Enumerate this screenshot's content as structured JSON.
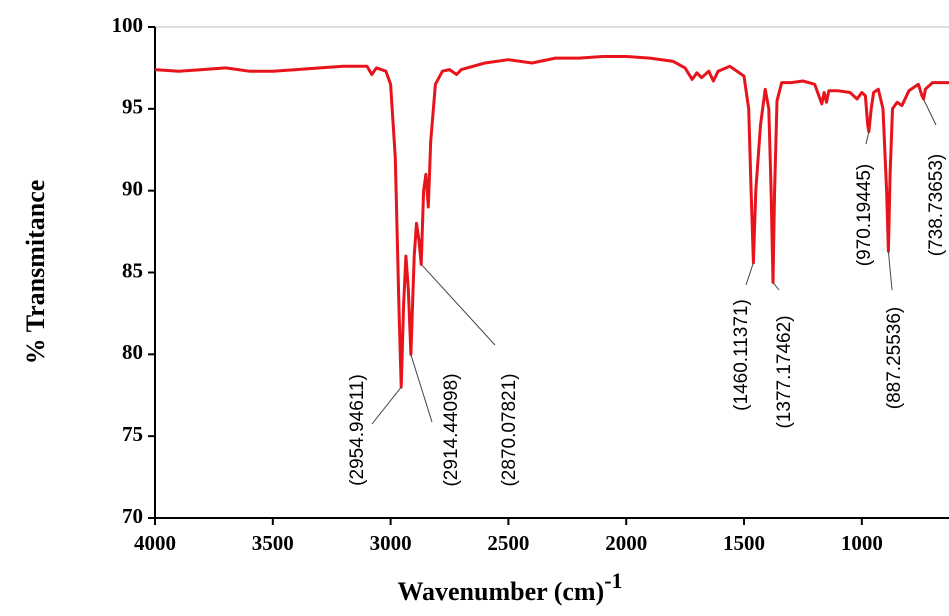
{
  "chart_data": {
    "type": "line",
    "y_label": "% Transmitance",
    "x_label": {
      "text": "Wavenumber (cm)",
      "superscript": "-1"
    },
    "xlim": [
      4000,
      630
    ],
    "ylim": [
      70,
      100
    ],
    "xticks": [
      4000,
      3500,
      3000,
      2500,
      2000,
      1500,
      1000
    ],
    "yticks": [
      70,
      75,
      80,
      85,
      90,
      95,
      100
    ],
    "series": [
      {
        "color": "#e8141b",
        "x": [
          4000,
          3900,
          3800,
          3700,
          3600,
          3500,
          3400,
          3300,
          3200,
          3100,
          3080,
          3060,
          3020,
          3000,
          2980,
          2965,
          2955,
          2945,
          2935,
          2925,
          2914,
          2900,
          2890,
          2880,
          2870,
          2860,
          2850,
          2840,
          2830,
          2810,
          2780,
          2750,
          2720,
          2700,
          2600,
          2500,
          2400,
          2300,
          2200,
          2100,
          2000,
          1900,
          1800,
          1750,
          1720,
          1700,
          1680,
          1650,
          1630,
          1610,
          1560,
          1500,
          1480,
          1470,
          1460,
          1450,
          1430,
          1410,
          1395,
          1385,
          1377,
          1370,
          1360,
          1340,
          1300,
          1250,
          1200,
          1170,
          1160,
          1150,
          1140,
          1100,
          1050,
          1020,
          1000,
          985,
          975,
          970,
          960,
          950,
          930,
          910,
          895,
          887,
          880,
          870,
          850,
          830,
          800,
          760,
          745,
          738,
          730,
          700,
          650,
          630
        ],
        "values": [
          97.4,
          97.3,
          97.4,
          97.5,
          97.3,
          97.3,
          97.4,
          97.5,
          97.6,
          97.6,
          97.1,
          97.5,
          97.3,
          96.5,
          92,
          83,
          78,
          83,
          86,
          84,
          80,
          86,
          88,
          87,
          85.5,
          90,
          91,
          89,
          93,
          96.5,
          97.3,
          97.4,
          97.1,
          97.4,
          97.8,
          98.0,
          97.8,
          98.1,
          98.1,
          98.2,
          98.2,
          98.1,
          97.9,
          97.5,
          96.8,
          97.2,
          96.9,
          97.3,
          96.7,
          97.3,
          97.6,
          97.0,
          95,
          90,
          85.6,
          90,
          94,
          96.2,
          95,
          90,
          84.4,
          90,
          95.5,
          96.6,
          96.6,
          96.7,
          96.5,
          95.3,
          96,
          95.4,
          96.1,
          96.1,
          96,
          95.6,
          96.0,
          95.8,
          94,
          93.6,
          95,
          96,
          96.2,
          95,
          90,
          86.3,
          91,
          95,
          95.4,
          95.2,
          96.1,
          96.5,
          95.8,
          95.6,
          96.2,
          96.6,
          96.6,
          96.6
        ]
      }
    ],
    "annotations": [
      {
        "label": "(2954.94611)",
        "x": 2954.94611,
        "y": 78
      },
      {
        "label": "(2914.44098)",
        "x": 2914.44098,
        "y": 80
      },
      {
        "label": "(2870.07821)",
        "x": 2870.07821,
        "y": 85.5
      },
      {
        "label": "(1460.11371)",
        "x": 1460.11371,
        "y": 85.6
      },
      {
        "label": "(1377.17462)",
        "x": 1377.17462,
        "y": 84.4
      },
      {
        "label": "(970.19445)",
        "x": 970.19445,
        "y": 93.6
      },
      {
        "label": "(887.25536)",
        "x": 887.25536,
        "y": 86.3
      },
      {
        "label": "(738.73653)",
        "x": 738.73653,
        "y": 95.6
      }
    ]
  }
}
